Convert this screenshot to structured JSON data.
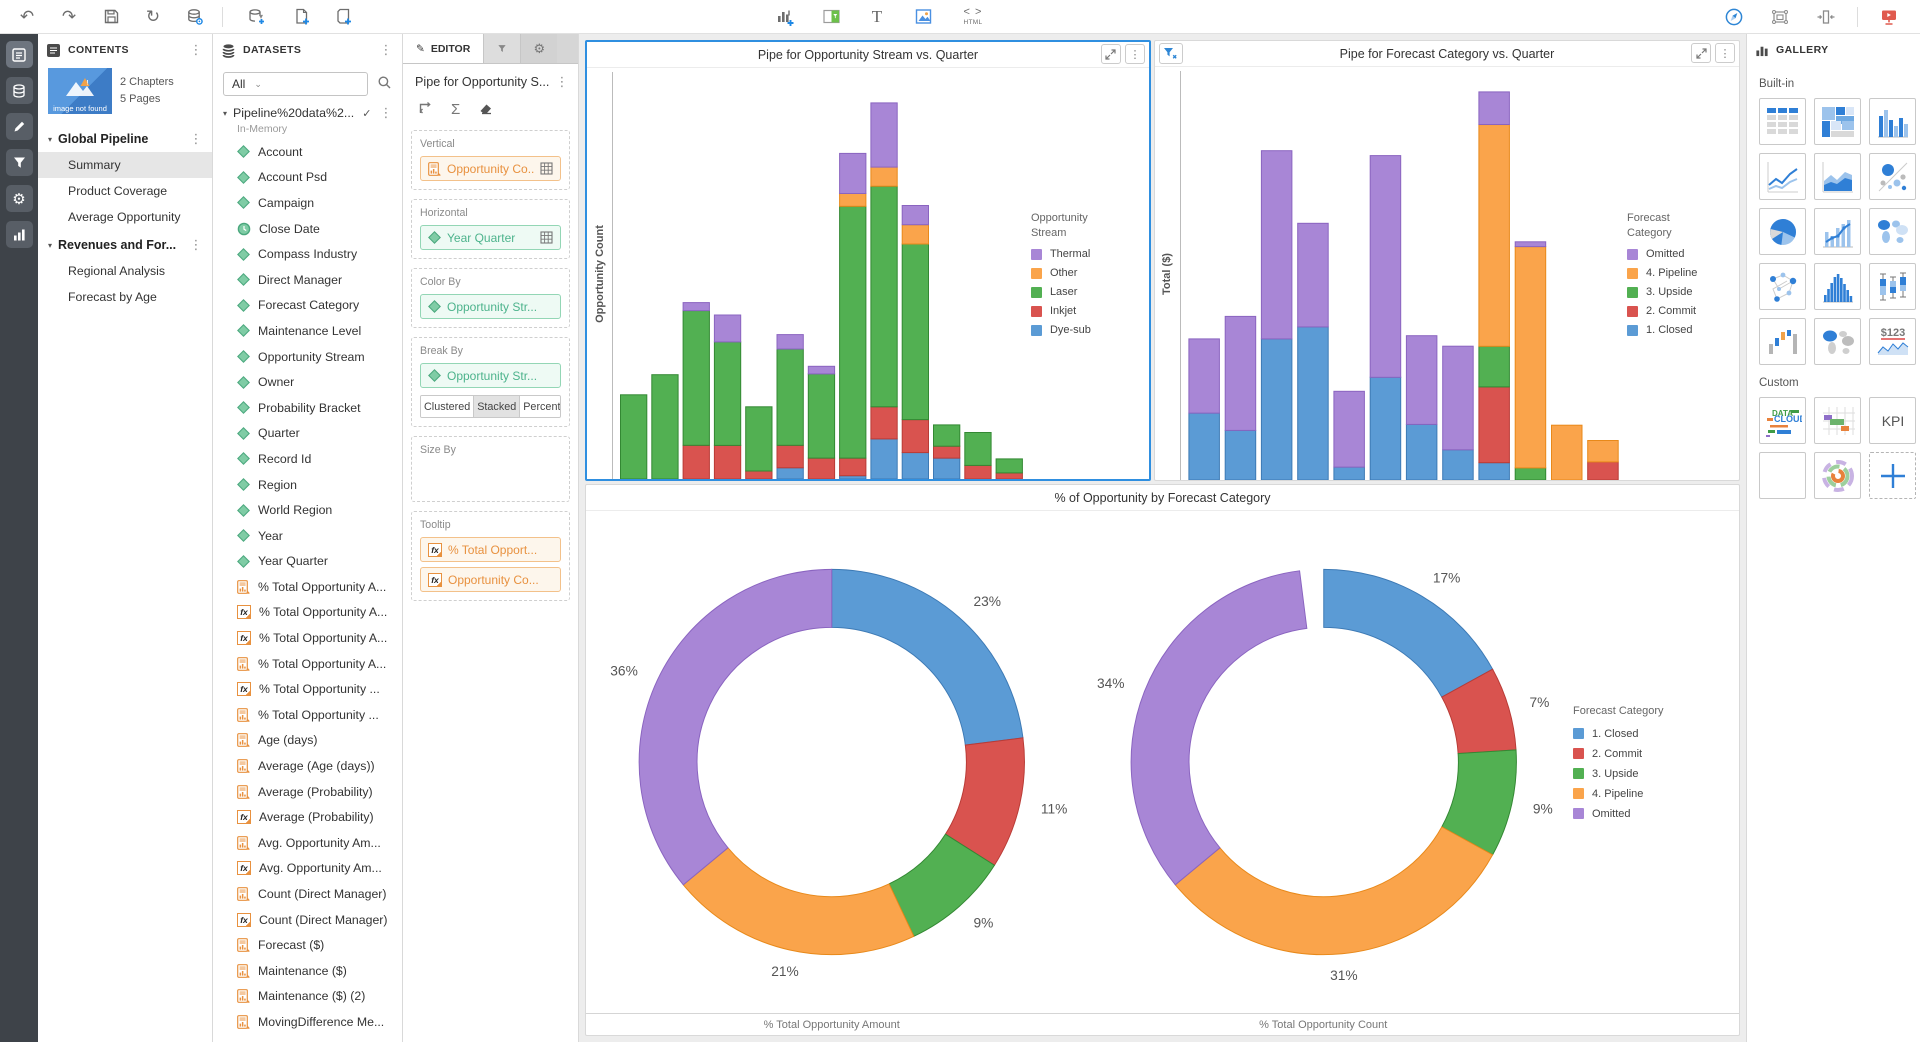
{
  "toolbar": {
    "html_label": "HTML"
  },
  "contents": {
    "title": "CONTENTS",
    "thumbnail_caption": "image not found",
    "meta_chapters": "2 Chapters",
    "meta_pages": "5 Pages",
    "chapters": [
      {
        "label": "Global Pipeline",
        "selected_page": "Summary",
        "pages": [
          "Summary",
          "Product Coverage",
          "Average Opportunity"
        ]
      },
      {
        "label": "Revenues and For...",
        "selected_page": "",
        "pages": [
          "Regional Analysis",
          "Forecast by Age"
        ]
      }
    ]
  },
  "datasets": {
    "title": "DATASETS",
    "filter_value": "All",
    "dataset_name": "Pipeline%20data%2...",
    "dataset_subtitle": "In-Memory",
    "fields": [
      {
        "name": "Account",
        "type": "attribute"
      },
      {
        "name": "Account Psd",
        "type": "attribute"
      },
      {
        "name": "Campaign",
        "type": "attribute"
      },
      {
        "name": "Close Date",
        "type": "date"
      },
      {
        "name": "Compass Industry",
        "type": "attribute"
      },
      {
        "name": "Direct Manager",
        "type": "attribute"
      },
      {
        "name": "Forecast Category",
        "type": "attribute"
      },
      {
        "name": "Maintenance Level",
        "type": "attribute"
      },
      {
        "name": "Opportunity Stream",
        "type": "attribute"
      },
      {
        "name": "Owner",
        "type": "attribute"
      },
      {
        "name": "Probability Bracket",
        "type": "attribute"
      },
      {
        "name": "Quarter",
        "type": "attribute"
      },
      {
        "name": "Record Id",
        "type": "attribute"
      },
      {
        "name": "Region",
        "type": "attribute"
      },
      {
        "name": "World Region",
        "type": "attribute"
      },
      {
        "name": "Year",
        "type": "attribute"
      },
      {
        "name": "Year Quarter",
        "type": "attribute"
      },
      {
        "name": "% Total Opportunity A...",
        "type": "metric"
      },
      {
        "name": "% Total Opportunity A...",
        "type": "formula"
      },
      {
        "name": "% Total Opportunity A...",
        "type": "formula"
      },
      {
        "name": "% Total Opportunity A...",
        "type": "metric"
      },
      {
        "name": "% Total Opportunity ...",
        "type": "formula"
      },
      {
        "name": "% Total Opportunity ...",
        "type": "metric"
      },
      {
        "name": "Age (days)",
        "type": "metric"
      },
      {
        "name": "Average (Age (days))",
        "type": "metric"
      },
      {
        "name": "Average (Probability)",
        "type": "metric"
      },
      {
        "name": "Average (Probability)",
        "type": "formula"
      },
      {
        "name": "Avg. Opportunity Am...",
        "type": "metric"
      },
      {
        "name": "Avg. Opportunity Am...",
        "type": "formula"
      },
      {
        "name": "Count (Direct Manager)",
        "type": "metric"
      },
      {
        "name": "Count (Direct Manager)",
        "type": "formula"
      },
      {
        "name": "Forecast ($)",
        "type": "metric"
      },
      {
        "name": "Maintenance ($)",
        "type": "metric"
      },
      {
        "name": "Maintenance ($) (2)",
        "type": "metric"
      },
      {
        "name": "MovingDifference Me...",
        "type": "metric"
      }
    ]
  },
  "editor": {
    "tab_label": "EDITOR",
    "viz_title": "Pipe for Opportunity S...",
    "zones": [
      {
        "label": "Vertical",
        "chips": [
          {
            "text": "Opportunity Co...",
            "kind": "metric",
            "grid": true
          }
        ]
      },
      {
        "label": "Horizontal",
        "chips": [
          {
            "text": "Year Quarter",
            "kind": "attribute",
            "grid": true
          }
        ]
      },
      {
        "label": "Color By",
        "chips": [
          {
            "text": "Opportunity Str...",
            "kind": "attribute"
          }
        ]
      },
      {
        "label": "Break By",
        "chips": [
          {
            "text": "Opportunity Str...",
            "kind": "attribute"
          }
        ],
        "toggle": [
          "Clustered",
          "Stacked",
          "Percent"
        ],
        "active_toggle": "Stacked"
      },
      {
        "label": "Size By",
        "chips": []
      },
      {
        "label": "Tooltip",
        "chips": [
          {
            "text": "% Total Opport...",
            "kind": "formula"
          },
          {
            "text": "Opportunity Co...",
            "kind": "formula"
          }
        ]
      }
    ]
  },
  "gallery": {
    "title": "GALLERY",
    "sections": [
      {
        "label": "Built-in",
        "tiles": [
          "grid",
          "heatmap",
          "bar-chart",
          "line-chart",
          "area-chart",
          "bubble-chart",
          "pie-chart",
          "combo-chart",
          "geo-map",
          "network",
          "histogram",
          "box-plot",
          "waterfall",
          "map-filled",
          "kpi-sparkline"
        ]
      },
      {
        "label": "Custom",
        "tiles": [
          "data-cloud",
          "gantt",
          "kpi",
          "blank",
          "sunburst",
          "add-custom"
        ]
      }
    ],
    "kpi_spark_label": "$123",
    "kpi_tile_label": "KPI",
    "data_cloud_label1": "DATA",
    "data_cloud_label2": "CLOUD"
  },
  "palette": {
    "fill": {
      "blue": "#5B9BD5",
      "red": "#D9534F",
      "green": "#52B052",
      "orange": "#FAA44B",
      "purple": "#A886D6"
    },
    "stroke": {
      "blue": "#3D7AB5",
      "red": "#B93B36",
      "green": "#338833",
      "orange": "#E8891A",
      "purple": "#8A64C0"
    }
  },
  "donut_panel": {
    "title": "% of Opportunity by Forecast Category",
    "legend_title": "Forecast Category",
    "legend": [
      {
        "label": "1. Closed",
        "color": "blue"
      },
      {
        "label": "2. Commit",
        "color": "red"
      },
      {
        "label": "3. Upside",
        "color": "green"
      },
      {
        "label": "4. Pipeline",
        "color": "orange"
      },
      {
        "label": "Omitted",
        "color": "purple"
      }
    ]
  },
  "chart_data": [
    {
      "id": "pipe_stream_vs_quarter",
      "type": "bar",
      "stacked": true,
      "title": "Pipe for Opportunity Stream vs. Quarter",
      "ylabel": "Opportunity Count",
      "x_note": "Year Quarter (category axis labels not visible)",
      "units": "percent of plot height (value-axis tick labels not visible)",
      "legend_title": [
        "Opportunity",
        "Stream"
      ],
      "legend": [
        {
          "label": "Thermal",
          "color": "purple"
        },
        {
          "label": "Other",
          "color": "orange"
        },
        {
          "label": "Laser",
          "color": "green"
        },
        {
          "label": "Inkjet",
          "color": "red"
        },
        {
          "label": "Dye-sub",
          "color": "blue"
        }
      ],
      "series": [
        {
          "name": "Dye-sub",
          "color": "blue",
          "values": [
            0,
            0,
            0,
            0,
            0,
            2.8,
            0,
            0.8,
            10,
            6.6,
            5.2,
            0,
            0
          ]
        },
        {
          "name": "Inkjet",
          "color": "red",
          "values": [
            0,
            0,
            8.4,
            8.4,
            2,
            5.6,
            5.2,
            4.4,
            8,
            8.2,
            3,
            3.4,
            1.5
          ]
        },
        {
          "name": "Laser",
          "color": "green",
          "values": [
            21,
            26,
            33.6,
            25.8,
            16,
            24,
            21,
            62.8,
            55,
            43.8,
            5.3,
            8.2,
            3.5
          ]
        },
        {
          "name": "Other",
          "color": "orange",
          "values": [
            0,
            0,
            0,
            0,
            0,
            0,
            0,
            3.2,
            4.8,
            4.8,
            0,
            0,
            0
          ]
        },
        {
          "name": "Thermal",
          "color": "purple",
          "values": [
            0,
            0,
            2,
            6.7,
            0,
            3.6,
            1.9,
            10,
            16,
            4.8,
            0,
            0,
            0
          ]
        }
      ]
    },
    {
      "id": "pipe_forecast_vs_quarter",
      "type": "bar",
      "stacked": true,
      "filtered": true,
      "title": "Pipe for Forecast Category vs. Quarter",
      "ylabel": "Total ($)",
      "x_note": "Year Quarter (category axis labels not visible)",
      "units": "percent of plot height (value-axis tick labels not visible)",
      "legend_title": [
        "Forecast",
        "Category"
      ],
      "legend": [
        {
          "label": "Omitted",
          "color": "purple"
        },
        {
          "label": "4. Pipeline",
          "color": "orange"
        },
        {
          "label": "3. Upside",
          "color": "green"
        },
        {
          "label": "2. Commit",
          "color": "red"
        },
        {
          "label": "1. Closed",
          "color": "blue"
        }
      ],
      "series": [
        {
          "name": "1. Closed",
          "color": "blue",
          "values": [
            16.6,
            12.3,
            35,
            38,
            3.2,
            25.5,
            13.8,
            7.5,
            4.3,
            0,
            0,
            0
          ]
        },
        {
          "name": "2. Commit",
          "color": "red",
          "values": [
            0,
            0,
            0,
            0,
            0,
            0,
            0,
            0,
            18.8,
            0,
            0,
            4.5
          ]
        },
        {
          "name": "3. Upside",
          "color": "green",
          "values": [
            0,
            0,
            0,
            0,
            0,
            0,
            0,
            0,
            10.1,
            3,
            0,
            0
          ]
        },
        {
          "name": "4. Pipeline",
          "color": "orange",
          "values": [
            0,
            0,
            0,
            0,
            0,
            0,
            0,
            0,
            55,
            54.9,
            13.6,
            5.3
          ]
        },
        {
          "name": "Omitted",
          "color": "purple",
          "values": [
            18.4,
            28.3,
            46.7,
            25.7,
            18.8,
            55,
            22,
            25.7,
            8.1,
            1.2,
            0,
            0
          ]
        }
      ]
    },
    {
      "id": "pct_opportunity_amount",
      "type": "pie",
      "subtype": "donut",
      "axis_label": "% Total Opportunity Amount",
      "slices": [
        {
          "label": "1. Closed",
          "color": "blue",
          "value": 23
        },
        {
          "label": "2. Commit",
          "color": "red",
          "value": 11
        },
        {
          "label": "3. Upside",
          "color": "green",
          "value": 9
        },
        {
          "label": "4. Pipeline",
          "color": "orange",
          "value": 21
        },
        {
          "label": "Omitted",
          "color": "purple",
          "value": 36
        }
      ]
    },
    {
      "id": "pct_opportunity_count",
      "type": "pie",
      "subtype": "donut",
      "axis_label": "% Total Opportunity Count",
      "slices": [
        {
          "label": "1. Closed",
          "color": "blue",
          "value": 17
        },
        {
          "label": "2. Commit",
          "color": "red",
          "value": 7
        },
        {
          "label": "3. Upside",
          "color": "green",
          "value": 9
        },
        {
          "label": "4. Pipeline",
          "color": "orange",
          "value": 31
        },
        {
          "label": "Omitted",
          "color": "purple",
          "value": 34
        }
      ]
    }
  ]
}
